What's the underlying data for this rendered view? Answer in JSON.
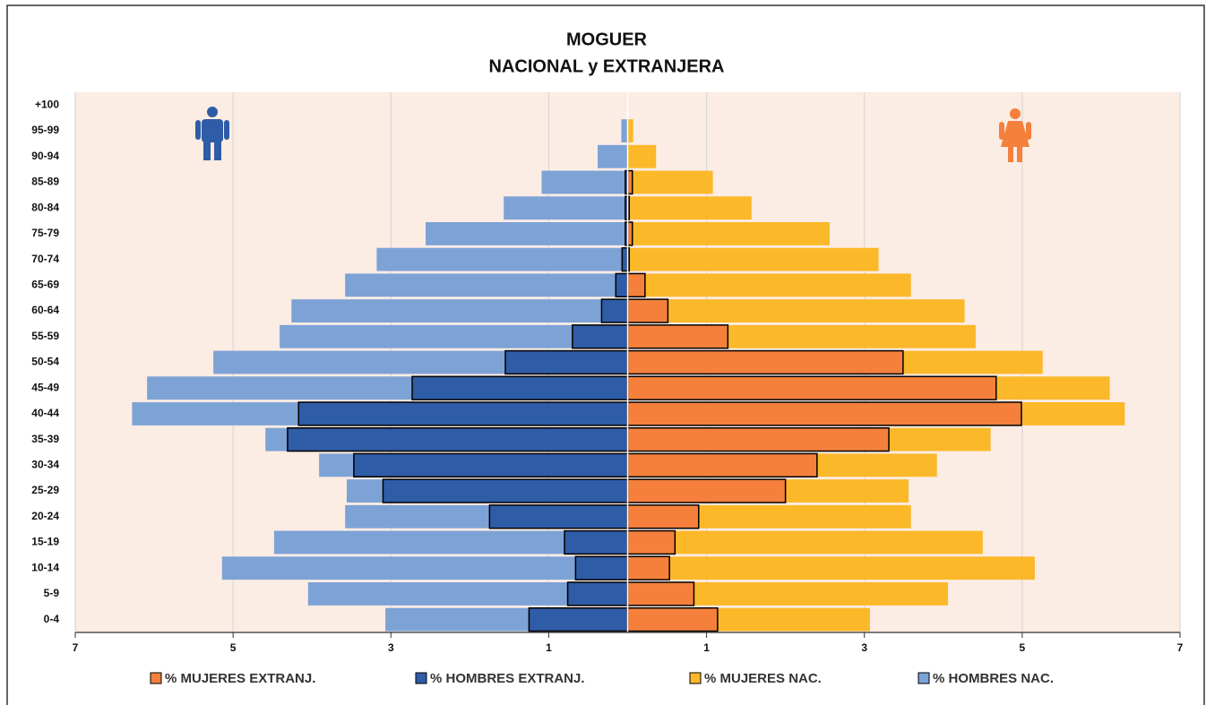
{
  "chart_data": {
    "type": "pyramid",
    "title": [
      "MOGUER",
      "NACIONAL y EXTRANJERA"
    ],
    "categories": [
      "0-4",
      "5-9",
      "10-14",
      "15-19",
      "20-24",
      "25-29",
      "30-34",
      "35-39",
      "40-44",
      "45-49",
      "50-54",
      "55-59",
      "60-64",
      "65-69",
      "70-74",
      "75-79",
      "80-84",
      "85-89",
      "90-94",
      "95-99",
      "+100"
    ],
    "series": [
      {
        "name": "% MUJERES EXTRANJ.",
        "color": "#f4803c",
        "outline": "#000000",
        "values": [
          1.14,
          0.84,
          0.53,
          0.6,
          0.9,
          2.0,
          2.4,
          3.31,
          4.99,
          4.67,
          3.49,
          1.27,
          0.51,
          0.22,
          0.02,
          0.06,
          0.02,
          0.06,
          0,
          0,
          0
        ]
      },
      {
        "name": "% HOMBRES EXTRANJ.",
        "color": "#2f5ca6",
        "outline": "#000000",
        "values": [
          -1.25,
          -0.76,
          -0.66,
          -0.8,
          -1.75,
          -3.1,
          -3.47,
          -4.31,
          -4.17,
          -2.73,
          -1.55,
          -0.7,
          -0.33,
          -0.15,
          -0.07,
          -0.03,
          -0.03,
          -0.03,
          0,
          0,
          0
        ]
      },
      {
        "name": "% MUJERES NAC.",
        "color": "#fbb829",
        "values": [
          3.07,
          4.06,
          5.16,
          4.5,
          3.59,
          3.56,
          3.92,
          4.6,
          6.3,
          6.11,
          5.26,
          4.41,
          4.27,
          3.59,
          3.18,
          2.56,
          1.57,
          1.08,
          0.36,
          0.07,
          0
        ]
      },
      {
        "name": "% HOMBRES NAC.",
        "color": "#7da2d6",
        "values": [
          -3.07,
          -4.05,
          -5.14,
          -4.48,
          -3.58,
          -3.56,
          -3.91,
          -4.59,
          -6.28,
          -6.09,
          -5.25,
          -4.41,
          -4.26,
          -3.58,
          -3.18,
          -2.56,
          -1.57,
          -1.09,
          -0.38,
          -0.08,
          0
        ]
      }
    ],
    "xlim": [
      -7,
      7
    ],
    "xticks": [
      {
        "value": -7,
        "label": "7"
      },
      {
        "value": -5,
        "label": "5"
      },
      {
        "value": -3,
        "label": "3"
      },
      {
        "value": -1,
        "label": "1"
      },
      1,
      3,
      5,
      7
    ],
    "grid": true,
    "plot_background": "#fbece4"
  }
}
